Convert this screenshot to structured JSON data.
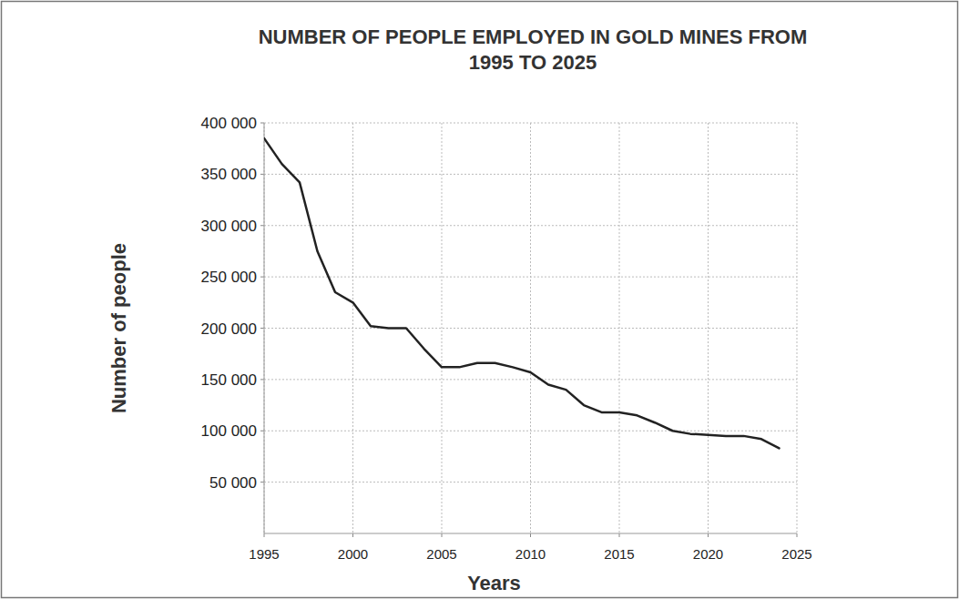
{
  "chart_data": {
    "type": "line",
    "title": "NUMBER OF PEOPLE EMPLOYED IN GOLD MINES FROM 1995 TO 2025",
    "x_label": "Years",
    "y_label": "Number of people",
    "x": [
      1995,
      1996,
      1997,
      1998,
      1999,
      2000,
      2001,
      2002,
      2003,
      2004,
      2005,
      2006,
      2007,
      2008,
      2009,
      2010,
      2011,
      2012,
      2013,
      2014,
      2015,
      2016,
      2017,
      2018,
      2019,
      2020,
      2021,
      2022,
      2023,
      2024
    ],
    "values": [
      385000,
      360000,
      342000,
      275000,
      235000,
      225000,
      202000,
      200000,
      200000,
      180000,
      162000,
      162000,
      166000,
      166000,
      162000,
      157000,
      145000,
      140000,
      125000,
      118000,
      118000,
      115000,
      108000,
      100000,
      97000,
      96000,
      95000,
      95000,
      92000,
      83000
    ],
    "color": "#222222",
    "xlim": [
      1995,
      2025
    ],
    "xticks": [
      1995,
      2000,
      2005,
      2010,
      2015,
      2020,
      2025
    ],
    "ylim": [
      0,
      400000
    ],
    "yticks": [
      {
        "value": 50000,
        "label": "50 000"
      },
      {
        "value": 100000,
        "label": "100 000"
      },
      {
        "value": 150000,
        "label": "150 000"
      },
      {
        "value": 200000,
        "label": "200 000"
      },
      {
        "value": 250000,
        "label": "250 000"
      },
      {
        "value": 300000,
        "label": "300 000"
      },
      {
        "value": 350000,
        "label": "350 000"
      },
      {
        "value": 400000,
        "label": "400 000"
      }
    ],
    "grid": true
  }
}
